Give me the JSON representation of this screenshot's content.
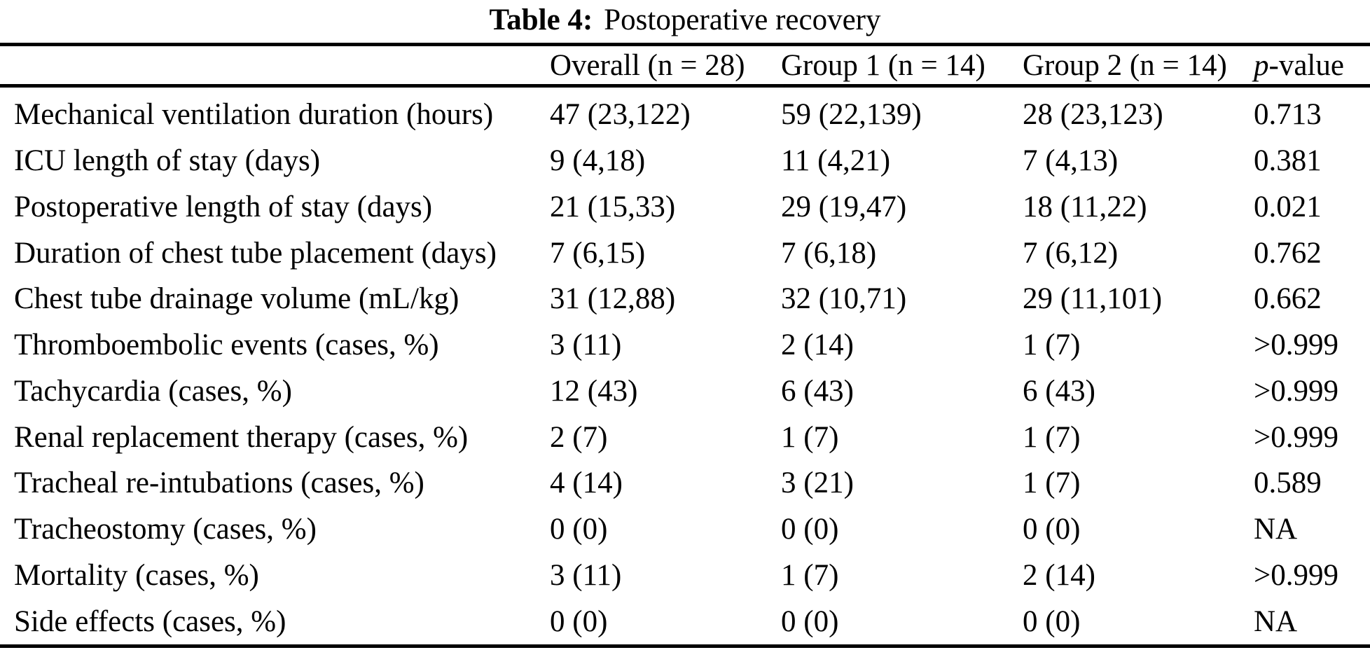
{
  "caption": {
    "label": "Table 4:",
    "title": "Postoperative recovery"
  },
  "table": {
    "header": {
      "overall": "Overall (n = 28)",
      "group1": "Group 1 (n = 14)",
      "group2": "Group 2 (n = 14)",
      "pvalue_italic": "p",
      "pvalue_rest": "-value"
    },
    "rows": [
      {
        "label": "Mechanical ventilation duration (hours)",
        "overall": "47 (23,122)",
        "group1": "59 (22,139)",
        "group2": "28 (23,123)",
        "pvalue": "0.713"
      },
      {
        "label": "ICU length of stay (days)",
        "overall": "9 (4,18)",
        "group1": "11 (4,21)",
        "group2": "7 (4,13)",
        "pvalue": "0.381"
      },
      {
        "label": "Postoperative length of stay (days)",
        "overall": "21 (15,33)",
        "group1": "29 (19,47)",
        "group2": "18 (11,22)",
        "pvalue": "0.021"
      },
      {
        "label": "Duration of chest tube placement (days)",
        "overall": "7 (6,15)",
        "group1": "7 (6,18)",
        "group2": "7 (6,12)",
        "pvalue": "0.762"
      },
      {
        "label": "Chest tube drainage volume (mL/kg)",
        "overall": "31 (12,88)",
        "group1": "32 (10,71)",
        "group2": "29 (11,101)",
        "pvalue": "0.662"
      },
      {
        "label": "Thromboembolic events (cases, %)",
        "overall": "3 (11)",
        "group1": "2 (14)",
        "group2": "1 (7)",
        "pvalue": ">0.999"
      },
      {
        "label": "Tachycardia (cases, %)",
        "overall": "12 (43)",
        "group1": "6 (43)",
        "group2": "6 (43)",
        "pvalue": ">0.999"
      },
      {
        "label": "Renal replacement therapy (cases, %)",
        "overall": "2 (7)",
        "group1": "1 (7)",
        "group2": "1 (7)",
        "pvalue": ">0.999"
      },
      {
        "label": "Tracheal re-intubations (cases, %)",
        "overall": "4 (14)",
        "group1": "3 (21)",
        "group2": "1 (7)",
        "pvalue": "0.589"
      },
      {
        "label": "Tracheostomy (cases, %)",
        "overall": "0 (0)",
        "group1": "0 (0)",
        "group2": "0 (0)",
        "pvalue": "NA"
      },
      {
        "label": "Mortality (cases, %)",
        "overall": "3 (11)",
        "group1": "1 (7)",
        "group2": "2 (14)",
        "pvalue": ">0.999"
      },
      {
        "label": "Side effects (cases, %)",
        "overall": "0 (0)",
        "group1": "0 (0)",
        "group2": "0 (0)",
        "pvalue": "NA"
      }
    ]
  }
}
